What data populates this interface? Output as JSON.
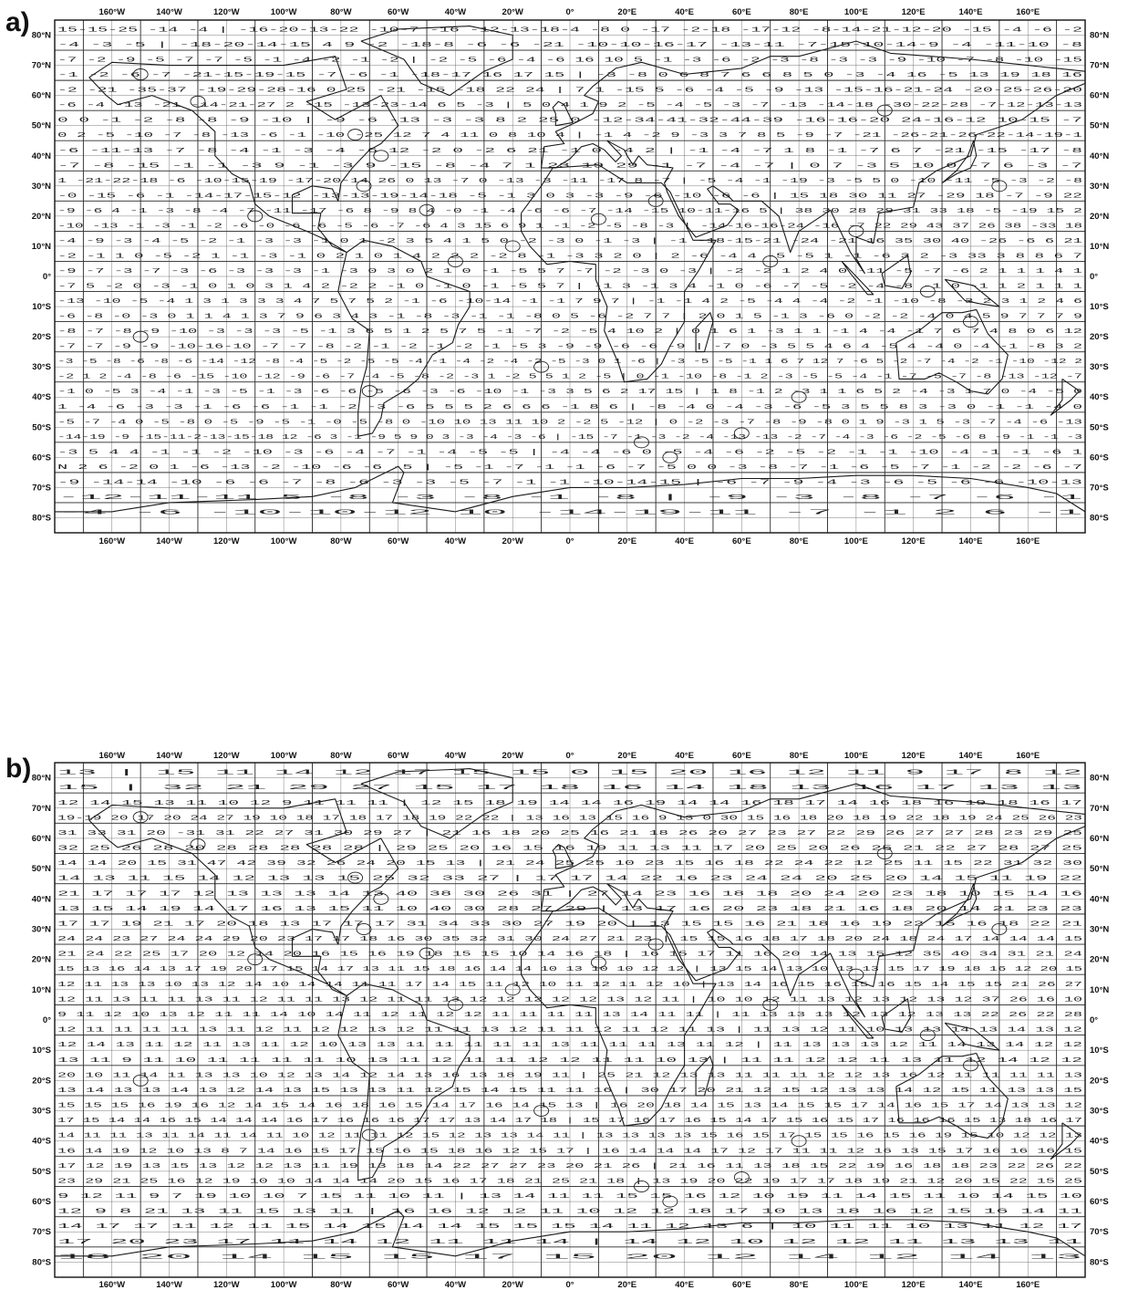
{
  "panels": [
    {
      "id": "a",
      "label": "a)",
      "top_lon_labels": [
        "160°W",
        "140°W",
        "120°W",
        "100°W",
        "80°W",
        "60°W",
        "40°W",
        "20°W",
        "0°",
        "20°E",
        "40°E",
        "60°E",
        "80°E",
        "100°E",
        "120°E",
        "140°E",
        "160°E"
      ],
      "bottom_lon_labels": [
        "160°W",
        "140°W",
        "120°W",
        "100°W",
        "80°W",
        "60°W",
        "40°W",
        "20°W",
        "0°",
        "20°E",
        "40°E",
        "60°E",
        "80°E",
        "100°E",
        "120°E",
        "140°E",
        "160°E"
      ],
      "lat_labels": [
        "80°N",
        "70°N",
        "60°N",
        "50°N",
        "40°N",
        "30°N",
        "20°N",
        "10°N",
        "0°",
        "10°S",
        "20°S",
        "30°S",
        "40°S",
        "50°S",
        "60°S",
        "70°S",
        "80°S"
      ],
      "sample_rows": [
        "15-15-25  -14  -4  |  -16-20-13-22  -10-7  -16  -12-13-18-4  -8 0 -17 -2-18  -17-12  -8-14-21-12-20 -15 -4 -6 -2",
        "-4 -3 -5  |  -18-20-14-15  4 9  -2  -18-8 -6 -6 -21 -10-10-16-17  -13-11  -7-15-10-14-9 -4 -11-10 -8",
        "-7 -2 -9 -5 -7 -7 -5 -1 -4 -2 -1 -2  |  -2 -5 -6 -4  -6 16 10 5 -1 -3 -6 -2 -3 -8 -3 -3 -9 -10 -7 -8 -10 -15",
        "-1 -2 -6 -7 -21-15-19-15 -7 -6 -1 -18-17 16 17 15  |  -3 -8 0 6 8  7 6 6 8 5 0  -3 -4 16 -5 13 19 18 16",
        "-2 -21 -35-37  -19-29-28-16 0 25 -21 -15 -18 22 24  |  7 1 -15 5 -6 -4 -5 -9 -13 -15-16-21-24 -20-25-26-20",
        "-6 -4 -13 -21  -14-21-27 2 -15 -13-23-14 6 5 -3  |  5 0 4 1 9 2 -5 -4 -5 -3 -7 -13 -14-18 -30-22-28 -7-12-13-13",
        "0 0 -1 -2 -8 -8 -9 -10  |  -9 -6 -13 -3 -3 8 2 25 0 -12-34-41-32-44-39 -16-16-20 24-16-12 10-15 -7",
        "0 2 -5 -10 -7 -8 -13 -6 -1 -10  -25 12 7 4 11 0 8 10 4  |  -1 4 -2 9 -3 3 7 8 5  -9 -7 -21 -26-21-26-22-14-19-1",
        "-6 -11-13 -7 -8 -4 -1 -3 -4 -6  12 -2 0 -2 6 21 -1 0 -4 2  |  -1 -4 -7 1 8 -1 -7 6 7  -21 -15 -17 -8",
        "-7 -8 -15 -1 -1 -3 9 -1 -3 9  -15 -8 -4 7 1 23 19 29  -1 -7 -4 -7  |  0 7 -3 5 10 0 -7 6  -3 -7",
        "1 -21-22-18 -6 -10-15-19 -17-20-14  26 0 13 -7 0 -13 -3  -11 -17 8 -7  |  -5 -4 -1 -19 -3 -5  5 0 -10 -11 -5 -3 -2 -8",
        "-0 -15 -6 -1 -14-17-15-12 -13-13-19-14-18  -5 -1 3 0 3 -3 -9 -6 -10 -6 -6  |  15 18 30 11 27 -29 18 -7 -9 22",
        "-9 -6 4 -1 -3 -8 -4 -7 -11 -17 -6 8 -9  8 4 -0 -1 -4 -6  -6 -7 -14 -15 10-11-16 5  |  38 30 28 29 31 33 18 -5 -19 15 2",
        "-10 -13 -1 -3 -1 -2 -6 -0 -6 -6 -5 -6 -7 -6  4 3 15 6 9 1 -1 -2 -5 -8 -3  |  -14-16-16-24 -16 -7 22 29 43 37 26 38 -33 18",
        "-4 -9 -3 -4 -5 -2 -1 -3 -3 -1 0 1 -2 3 5  4 1 5 0 -2 -3 0 -1 -3  |  -1 -18-15-21 -24 -21 16 35 30 40 -26 -6 6 21",
        "-2 -1 1 0 -5 -2 1 -1 -3 -1 0 2 1 0 1 4 2  2 2 -2 8 -1 -3 3 2 0  |  2 -6 -4 4 -5 -5 1 -1 -6 3 2 -3 33 3 8 8 6 7",
        "-9 -7 -3 -7 -3 -6 -3 -3 -3 -1 -3 0  3 0 2 1 0 -1 -5 5 7 -7 -2 -3 0 -3  |  -2 -2 1 2 4 0 -11 -5 -7 -6  2 1 1 1 4 1",
        "-7 5 -2 0 -3 -1 0 1 0 3 1 4 2 -2 2 -1  0 -1 0 -1 -5 5 7  |  -1 3 -1 3 4 -1 0 -6 -7 -5 -2 -4 -8  -1 0 -1 1 2 1 1 1",
        "-13 -10 -5 -4 1 3 1 3 3 3 4 7 5 7 5 2 -1  -6 -10-14 -1 -1 7 9 7  |  -1 -1 4 2 -5 -4 4 -4 -2 -1  -10 -8 -3 2 3 1 2 4 6",
        "-6 -8 -0 -3 0 1 1 4 1 3 7 9 6 3 4 3 -1 -8 -3 -1  -1 -8 0 5  -6 -2 7 7  |  2 0 1 5 -1 3 -6 0 -2 -2  -4 0 4 5 9 7 7 7 9",
        "-8 -7 -8 -9 -10 -3 -3 -3 -5 -1 3 6 5 1 2 5 7 5 -1 -7 -2  -5 4 10 2  |  0 1 6 1 -3 1 1 -1 4  -4 -1  7 6 7 4 8 0 6 12",
        "-7 -7 -9 -9 -10-16-10 -7 -7 -8 -2 -1 -2 -1 -2 -1 -5 3 -9 -9  -6 -6 -9  |  -7 0 -3 5 5 4 6 4 -5  4 -4 0 -4 -1 -8 3 2",
        "-3 -5 -8 -6 -8 -6 -14 -12 -8 -4 -5 -2 -5 -5 -4 -1 -4 -2 -4 -2 -5  -3 0 1 -6  |  -3 -5 -5 -1 1 6 7 12 7 -6  5 -2 -7 -4 -2 -1 -10 -12 2",
        "-2 1 2 -4 -8 -6 -15 -10 -12 -9 -6 -7 -4 -5 -8 -2 -3 1 -2 5  5 1 2 -5  |  0 -1 -10 -8 -1 2 -3 -5 -5  -4 -1 -7 -5 -7 -8 -13 -12 -7",
        "-1 0 -5 3 -4 -1 -3 -5 -1 -3 -6 -6 -5 -6 -3 -6 -10 -1  -3 3 5 6 2 17 15  |  1 8 -1 2 -3 1 1 6 5 2 -4 -3 1 7 0 -4 -5 0",
        "1 -4 -6 -3 -3 -1 -6 -6 -1 -1 -2 -3 -6 5 5 5 2 6 6 6 -1 8 6  |  -8 -4 0 -4 -3 -6 -5 3 5 5 8 3 -3 0 -1 -1 -4 0",
        "-5 -7 -4 0 -5 -8 0 -5 -9 -5 -1 -0 -5 -8 0 -10 10 13 11 10 2 -2 5 -12  |  0 -2 -3 -7 -8 -9 -8 0 1 9 -3 1 5 -3 -7 -4 -6 -13",
        "-14-19 -9 -15-11-2-13-15-18 12 -6 3 -1 -9 5 9 0 3 -3 -4 -3 -6  |  -15 -7 -1 -3 -2 -4 -13 -13 -2 -7 -4 -3 -6 -2 -5 -6 8 -9 -1 -1 -3",
        "-3 5 4 4 -1 -1 -2 -10 -3 -6 -4 -7 -1 -4 -5 -5  |  -4 -4 -6 0 -5 -4 -6 -2 -5 -2 -1 -1 -10 -4 -1 -1 -6 1",
        "N 2 6 -2 0 1 -6 -13 -2 -10 -6 -6 -5  |  -5 -1 -7 -1 -1 -6 -7 -5 0 0 -3 -8 -7 -1 -6 -5 -7 -1 -2 -2 -6 -7",
        "-9 -14-14 -10 -6 -6 -7 -8 -6 -3 -3 -5 -7 -1 -1 -10-14-15  |  -6 -7 -9 -4 -3 -6 -5 -6 -6 -10-13",
        "-12-11-11 5 -8 -3 -8 -1 -8  |  -9 -3 -8 -7 -6 -1",
        "-4 -6 -10-10-12 10  -14-19-11 -7 -1 2 6 -1"
      ]
    },
    {
      "id": "b",
      "label": "b)",
      "top_lon_labels": [
        "160°W",
        "140°W",
        "120°W",
        "100°W",
        "80°W",
        "60°W",
        "40°W",
        "20°W",
        "0°",
        "20°E",
        "40°E",
        "60°E",
        "80°E",
        "100°E",
        "120°E",
        "140°E",
        "160°E"
      ],
      "bottom_lon_labels": [
        "160°W",
        "140°W",
        "120°W",
        "100°W",
        "80°W",
        "60°W",
        "40°W",
        "20°W",
        "0°",
        "20°E",
        "40°E",
        "60°E",
        "80°E",
        "100°E",
        "120°E",
        "140°E",
        "160°E"
      ],
      "lat_labels": [
        "80°N",
        "70°N",
        "60°N",
        "50°N",
        "40°N",
        "30°N",
        "20°N",
        "10°N",
        "0°",
        "10°S",
        "20°S",
        "30°S",
        "40°S",
        "50°S",
        "60°S",
        "70°S",
        "80°S"
      ],
      "sample_rows": [
        "13  |  15 11  14 12  17  15 15 0 15 20  16 12  11 9 17 8  12",
        "15  |  32 21  29 27  15 17 18 16 14  18 13  16 17 13 13",
        "12 14 15 13 11 10 12 9 11 11 11  |  12 15 18 19 14 14 16 19 14 14 16 18 17 14 16 18 16 19 18 16 17",
        "19-19 20 17 20 24 27 19 10 18 17 18 17 18 19 22 22  |  13 16 13 15 16 9 13 0 30 15 16 18 20 18 19 22 18 19 24 25 26 23",
        "31 33 31 20 -31 31 22 27 31 30 29 27  |  21 16 18 20 25 16 21 18 26 20 27 23 27 22 29 26 27 27 28 23 29 25",
        "32 25 26 28  20 28 28 28 28 28  |  29 25 20 16 15 16 19 11 13 11 17 20 25 20 26 25 21 22 27 28 27 25",
        "14 14 20 15  31 47 42 39 32 26 24 20 15 13  |  21 24 25 25 10 23 15 16 18 22 24 22 12 25 11 15 22 31 32 30",
        "14 13 11 15 14 12 13 13 15  25 32 33 27  |  17 17 14 22 16 23 24 24 20 25 20 14 15 11 19 22",
        "21 17 17 17 12 13 13 13 14 13  40 38 30 26 31  |  27 14 23 16 18 18 20 24 20 23 18 10 15 14 16",
        "13 15 14 19 14 17 16 13 15 11 10  40 30 28 27 29  |  13 17 16 20 23 18 21 16 18 20 14 21 23 23",
        "17 17 19 21 17 20 18 13 17 17 17  31 34 33 30 27 19 20  |  13 15 15 16 21 18 16 19 22 15 16 18 22 21",
        "24 24 23 27 24 24 29 20 23 17 17 18 16  30 35 32 31 30 24 27 21 23  |  15 15 16 18 17 18 20 24 18 24 17 14 14 14 15",
        "21 24 22 25 17 20 12 14 20 16 15 16  19 18 15 15 10 14 16 18  |  16 15 17 11 16 20 14 13 15 12 35 40 34 31 21 24",
        "15 13 16 14 13 17 19 20 17 15 14 17 13 11 15  18 16 14 14 10 13 10 10 12 12  |  13 15 14 13 10 13 13 15 17 19 18 16 12 20 15",
        "12 11 13 13 10 13 12 14 10 14 14 11 11  17 14 15 11 12 10 11 12 11 12 10  |  13 14 16 15 16 15 16 15 14 15 15 21 26 27",
        "12 11 13 11 11 13 11 12 11 11 13 12 11 11 13 12 12 12 12 12 13 12 11  |  10 10 12 11 13 12 13 12 13 12 37 26 16 10",
        "9 11 12 10 13 12 11 11 14 10 14 11 12 11 12 12 11 11 11 11 13 14 11 11  |  11 13 13 13 12 13 12 13 13 22 26 22 28",
        "12 11 11 11 11 13 11 12 11 12 12 13 12 11 11 13 12 11 11 12 11 12 11 13  |  11 13 12 11 10 13 13 14 13 14 13 12",
        "12 14 13 11 12 11 13 11 12 10 13 13 11 11 11 11 11 13 11 11 11 13 11 12  |  11 13 13 13 12 11 14 13 14 12 12",
        "13 11 9 11 10 11 11 11 11 10 13 11 12 11 11 12 12 11 11 10 13  |  11 11 12 12 11 13 11 12 14 12 12",
        "20 10 11 14 11 13 13 10 12 13 14 12 14 13 16 13 18 19 11  |  25 21 12 13 13 11 11 11 12 12 13 16 12 11 11 11 11 13",
        "13 14 13 13 14 13 12 14 13 15 13 13 11 12 15 14 15 11 11 16  |  30 17 20 21 12 15 12 13 13 14 12 15 11 13 13 15",
        "15 15 15 16 19 16 12 14 15 14 16 18 16 15 14 17 16 14 15 13  |  16 20 18 14 15 13 14 15 15 17 14 16 15 17 14 13 13 12",
        "17 15 14 14 16 15 14 14 14 16 17 16 16 16 17 17 13 14 17 18  |  15 17 16 17 16 15 14 17 15 16 15 17 16 16 16 15 13 18 16 17",
        "14 11 11 13 11 14 11 14 11 10 12 11 11 12 15 12 13 13 14 11  |  13 13 13 13 15 16 15 17 15 15 16 15 16 19 15 10 12 12 13",
        "16 14 19 12 10 13 8 7 14 16 15 17 15 16 15 18 16 12 15 17  |  16 14 14 14 17 12 17 11 11 12 16 13 15 17 16 16 16 15",
        "17 12 19 13 15 13 12 12 13 11 19 13 18 14 22 27 27 23 20 21 26  |  21 16 11 13 18 15 22 19 16 18 18 23 22 26 22",
        "23 29 21 25 16 12 19 10 10 14 14 14 20 15 16 17 18 21 25 21 18  |  13 19 20 22 19 17 17 18 19 21 12 20 15 22 15 25",
        "9 12 11 9 7 19 10 10 7 15 11 10 11  |  13 14 11 11 15 15 16 12 10 19 11 14 15 11 10 14 15 10",
        "12 9 8 21 13 11 15 13 11  |  16 16 12 12 11 10 12 12 18 17 10 13 18 16 12 15 16 14 11",
        "14 17 17 11 12 11 15 14 15 14 14 15 15 15 14 11 12 13 6  |  10 11 11 10 13 11 12 17",
        "17 20 23 17 11 14 12 11 11 14  |  14 12 10 12 12 11 13 13 11",
        "18 20 14 15 15 17  15 20 12 14 12 14 13"
      ]
    }
  ],
  "colors": {
    "ink": "#111111",
    "paper": "#ffffff"
  }
}
